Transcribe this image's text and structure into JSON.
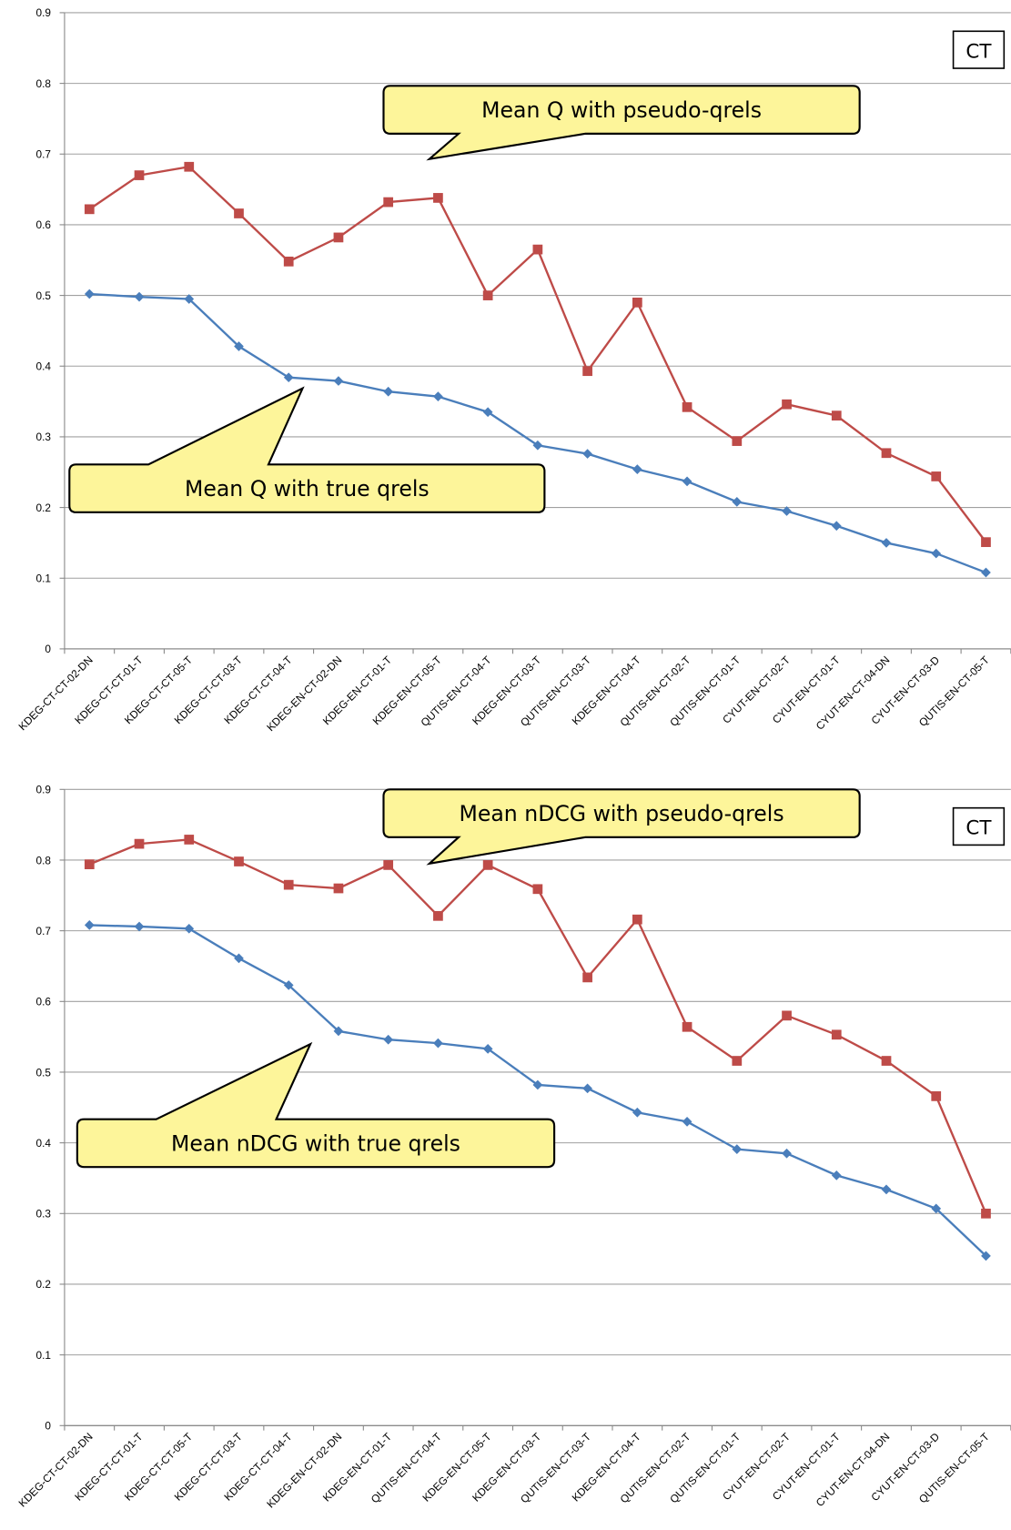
{
  "chart_data": [
    {
      "type": "line",
      "annotation": "CT",
      "categories": [
        "KDEG-CT-CT-02-DN",
        "KDEG-CT-CT-01-T",
        "KDEG-CT-CT-05-T",
        "KDEG-CT-CT-03-T",
        "KDEG-CT-CT-04-T",
        "KDEG-EN-CT-02-DN",
        "KDEG-EN-CT-01-T",
        "KDEG-EN-CT-05-T",
        "QUTIS-EN-CT-04-T",
        "KDEG-EN-CT-03-T",
        "QUTIS-EN-CT-03-T",
        "KDEG-EN-CT-04-T",
        "QUTIS-EN-CT-02-T",
        "QUTIS-EN-CT-01-T",
        "CYUT-EN-CT-02-T",
        "CYUT-EN-CT-01-T",
        "CYUT-EN-CT-04-DN",
        "CYUT-EN-CT-03-D",
        "QUTIS-EN-CT-05-T"
      ],
      "series": [
        {
          "name": "Mean Q with true qrels",
          "color": "#4a7ebb",
          "marker": "diamond",
          "values": [
            0.502,
            0.498,
            0.495,
            0.428,
            0.384,
            0.379,
            0.364,
            0.357,
            0.335,
            0.288,
            0.276,
            0.254,
            0.237,
            0.208,
            0.195,
            0.174,
            0.15,
            0.135,
            0.108
          ]
        },
        {
          "name": "Mean Q with pseudo-qrels",
          "color": "#be4b48",
          "marker": "square",
          "values": [
            0.622,
            0.67,
            0.682,
            0.616,
            0.548,
            0.582,
            0.632,
            0.638,
            0.5,
            0.565,
            0.393,
            0.49,
            0.342,
            0.294,
            0.346,
            0.33,
            0.277,
            0.244,
            0.151
          ]
        }
      ],
      "ylim": [
        0,
        0.9
      ],
      "yticks": [
        0,
        0.1,
        0.2,
        0.3,
        0.4,
        0.5,
        0.6,
        0.7,
        0.8,
        0.9
      ],
      "grid": true
    },
    {
      "type": "line",
      "annotation": "CT",
      "categories": [
        "KDEG-CT-CT-02-DN",
        "KDEG-CT-CT-01-T",
        "KDEG-CT-CT-05-T",
        "KDEG-CT-CT-03-T",
        "KDEG-CT-CT-04-T",
        "KDEG-EN-CT-02-DN",
        "KDEG-EN-CT-01-T",
        "QUTIS-EN-CT-04-T",
        "KDEG-EN-CT-05-T",
        "KDEG-EN-CT-03-T",
        "QUTIS-EN-CT-03-T",
        "KDEG-EN-CT-04-T",
        "QUTIS-EN-CT-02-T",
        "QUTIS-EN-CT-01-T",
        "CYUT-EN-CT-02-T",
        "CYUT-EN-CT-01-T",
        "CYUT-EN-CT-04-DN",
        "CYUT-EN-CT-03-D",
        "QUTIS-EN-CT-05-T"
      ],
      "series": [
        {
          "name": "Mean nDCG with true qrels",
          "color": "#4a7ebb",
          "marker": "diamond",
          "values": [
            0.708,
            0.706,
            0.703,
            0.661,
            0.623,
            0.558,
            0.546,
            0.541,
            0.533,
            0.482,
            0.477,
            0.443,
            0.43,
            0.391,
            0.385,
            0.354,
            0.334,
            0.307,
            0.24
          ]
        },
        {
          "name": "Mean nDCG with pseudo-qrels",
          "color": "#be4b48",
          "marker": "square",
          "values": [
            0.794,
            0.823,
            0.829,
            0.798,
            0.765,
            0.76,
            0.793,
            0.721,
            0.793,
            0.759,
            0.634,
            0.716,
            0.564,
            0.516,
            0.58,
            0.553,
            0.516,
            0.466,
            0.3
          ]
        }
      ],
      "ylim": [
        0,
        0.9
      ],
      "yticks": [
        0,
        0.1,
        0.2,
        0.3,
        0.4,
        0.5,
        0.6,
        0.7,
        0.8,
        0.9
      ],
      "grid": true
    }
  ]
}
